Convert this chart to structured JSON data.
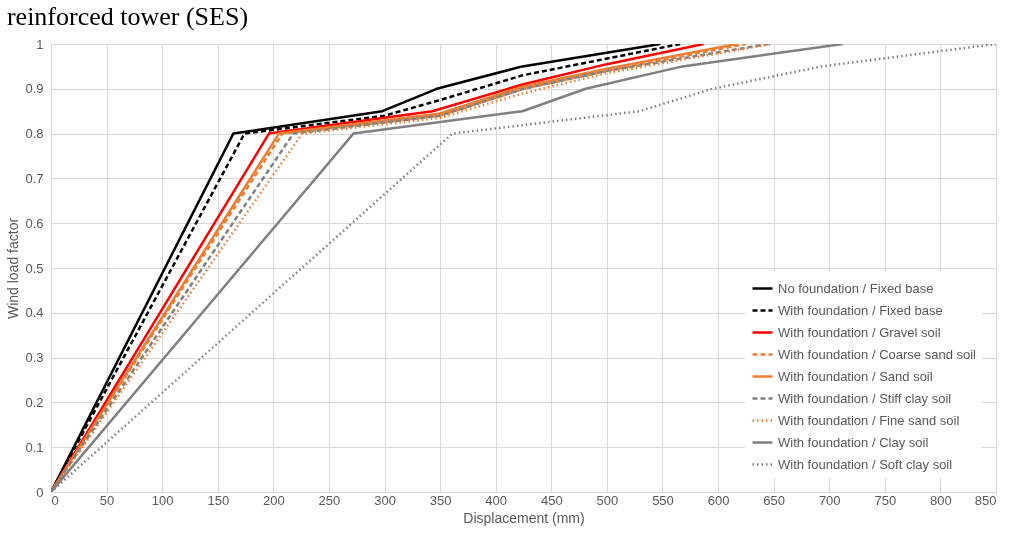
{
  "chart_data": {
    "type": "line",
    "title": "reinforced tower (SES)",
    "xlabel": "Displacement (mm)",
    "ylabel": "Wind load factor",
    "xlim": [
      0,
      850
    ],
    "xticks": [
      0,
      50,
      100,
      150,
      200,
      250,
      300,
      350,
      400,
      450,
      500,
      550,
      600,
      650,
      700,
      750,
      800,
      850
    ],
    "ylim": [
      0,
      1
    ],
    "yticks": [
      0,
      0.1,
      0.2,
      0.3,
      0.4,
      0.5,
      0.6,
      0.7,
      0.8,
      0.9,
      1
    ],
    "grid": true,
    "legend": "bottom right",
    "marker": "none",
    "series": [
      {
        "name": "No foundation / Fixed base",
        "color": "#000000",
        "line_style": "solid",
        "x": [
          0,
          164,
          298,
          347,
          424,
          548
        ],
        "values": [
          0,
          0.8,
          0.85,
          0.9,
          0.95,
          1
        ]
      },
      {
        "name": "With foundation / Fixed base",
        "color": "#000000",
        "line_style": "dashed",
        "x": [
          0,
          174,
          300,
          350,
          424,
          566
        ],
        "values": [
          0,
          0.8,
          0.84,
          0.875,
          0.93,
          1
        ]
      },
      {
        "name": "With foundation / Gravel soil",
        "color": "#ff0000",
        "line_style": "solid",
        "x": [
          0,
          196,
          343,
          425,
          500,
          587
        ],
        "values": [
          0,
          0.8,
          0.85,
          0.91,
          0.955,
          1
        ]
      },
      {
        "name": "With foundation / Coarse sand soil",
        "color": "#ed7d31",
        "line_style": "dashed",
        "x": [
          0,
          208,
          350,
          425,
          500,
          625
        ],
        "values": [
          0,
          0.8,
          0.84,
          0.9,
          0.94,
          1
        ]
      },
      {
        "name": "With foundation / Sand soil",
        "color": "#ed7d31",
        "line_style": "solid",
        "x": [
          0,
          205,
          350,
          425,
          500,
          617
        ],
        "values": [
          0,
          0.8,
          0.845,
          0.905,
          0.945,
          1
        ]
      },
      {
        "name": "With foundation / Stiff clay soil",
        "color": "#808080",
        "line_style": "dashed",
        "x": [
          0,
          218,
          350,
          425,
          500,
          645
        ],
        "values": [
          0,
          0.8,
          0.84,
          0.9,
          0.94,
          1
        ]
      },
      {
        "name": "With foundation / Fine sand soil",
        "color": "#ed7d31",
        "line_style": "dotted",
        "x": [
          0,
          226,
          350,
          425,
          500,
          648
        ],
        "values": [
          0,
          0.8,
          0.835,
          0.89,
          0.935,
          1
        ]
      },
      {
        "name": "With foundation / Clay soil",
        "color": "#808080",
        "line_style": "solid",
        "x": [
          0,
          272,
          424,
          481,
          568,
          712
        ],
        "values": [
          0,
          0.8,
          0.85,
          0.9,
          0.95,
          1
        ]
      },
      {
        "name": "With foundation / Soft clay soil",
        "color": "#808080",
        "line_style": "dotted",
        "x": [
          0,
          361,
          529,
          595,
          693,
          850
        ],
        "values": [
          0,
          0.8,
          0.85,
          0.9,
          0.95,
          1
        ]
      }
    ]
  }
}
